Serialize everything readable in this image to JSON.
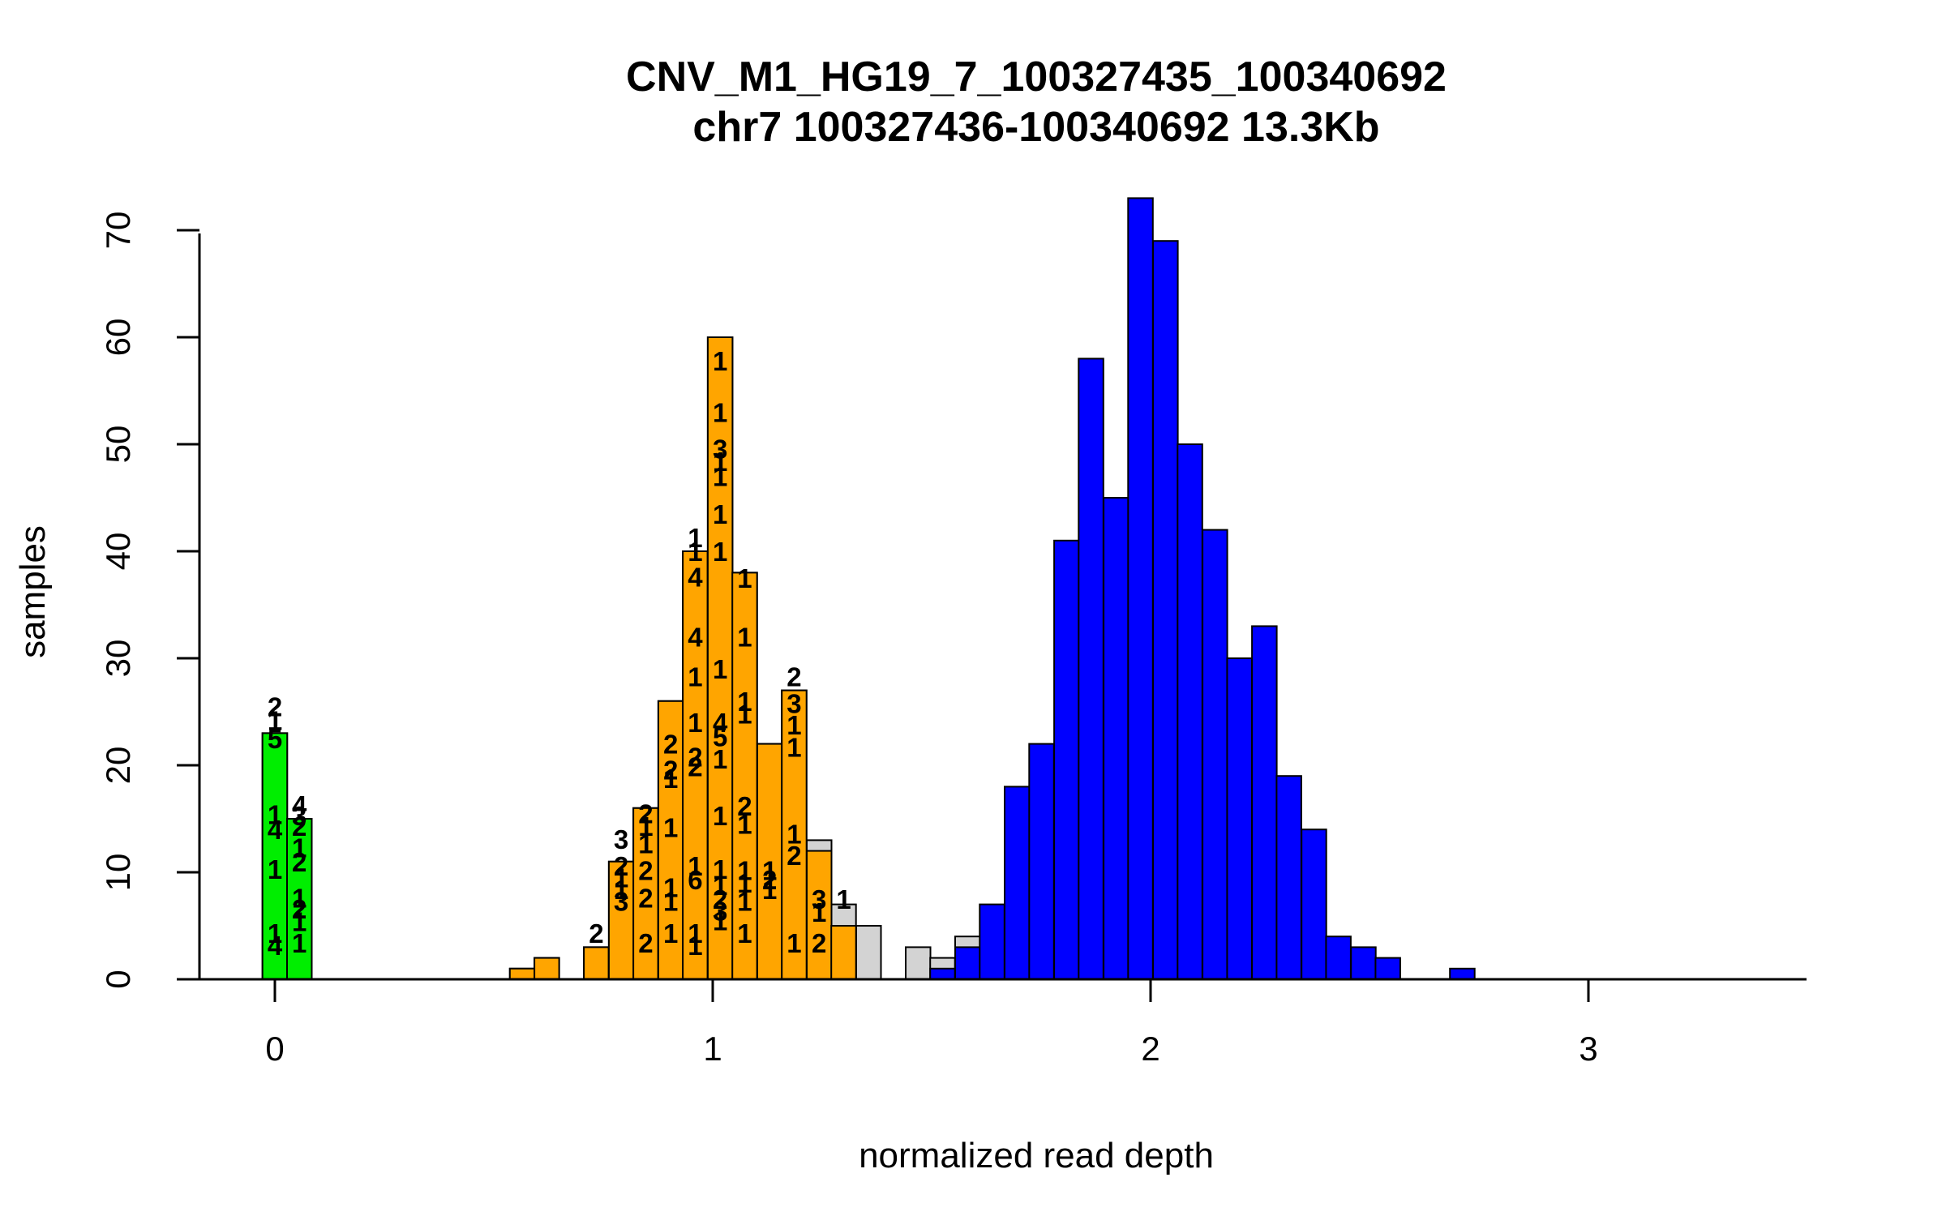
{
  "chart_data": {
    "type": "bar",
    "title": "CNV_M1_HG19_7_100327435_100340692",
    "subtitle": "chr7 100327436-100340692 13.3Kb",
    "xlabel": "normalized read depth",
    "ylabel": "samples",
    "xlim": [
      -0.17,
      3.5
    ],
    "ylim": [
      0,
      73
    ],
    "bin_width": 0.0565,
    "x_ticks": [
      0,
      1,
      2,
      3
    ],
    "y_ticks": [
      0,
      10,
      20,
      30,
      40,
      50,
      60,
      70
    ],
    "colors": {
      "total": "#d3d3d3",
      "zero_copy": "#00ee00",
      "one_copy": "#ffa500",
      "two_copy": "#0000ff"
    },
    "series": [
      {
        "color_key": "total",
        "bins": [
          {
            "x": 0.0,
            "value": 23
          },
          {
            "x": 0.056,
            "value": 15
          },
          {
            "x": 0.565,
            "value": 1
          },
          {
            "x": 0.621,
            "value": 2
          },
          {
            "x": 0.734,
            "value": 3
          },
          {
            "x": 0.791,
            "value": 11
          },
          {
            "x": 0.847,
            "value": 16
          },
          {
            "x": 0.904,
            "value": 26
          },
          {
            "x": 0.96,
            "value": 40
          },
          {
            "x": 1.017,
            "value": 60
          },
          {
            "x": 1.073,
            "value": 38
          },
          {
            "x": 1.13,
            "value": 22
          },
          {
            "x": 1.186,
            "value": 27
          },
          {
            "x": 1.243,
            "value": 13
          },
          {
            "x": 1.299,
            "value": 7
          },
          {
            "x": 1.356,
            "value": 5
          },
          {
            "x": 1.469,
            "value": 3
          },
          {
            "x": 1.525,
            "value": 2
          },
          {
            "x": 1.582,
            "value": 4
          }
        ]
      },
      {
        "color_key": "zero_copy",
        "bins": [
          {
            "x": 0.0,
            "value": 23
          },
          {
            "x": 0.056,
            "value": 15
          }
        ]
      },
      {
        "color_key": "one_copy",
        "bins": [
          {
            "x": 0.565,
            "value": 1
          },
          {
            "x": 0.621,
            "value": 2
          },
          {
            "x": 0.734,
            "value": 3
          },
          {
            "x": 0.791,
            "value": 11
          },
          {
            "x": 0.847,
            "value": 16
          },
          {
            "x": 0.904,
            "value": 26
          },
          {
            "x": 0.96,
            "value": 40
          },
          {
            "x": 1.017,
            "value": 60
          },
          {
            "x": 1.073,
            "value": 38
          },
          {
            "x": 1.13,
            "value": 22
          },
          {
            "x": 1.186,
            "value": 27
          },
          {
            "x": 1.243,
            "value": 12
          },
          {
            "x": 1.299,
            "value": 5
          }
        ]
      },
      {
        "color_key": "two_copy",
        "bins": [
          {
            "x": 1.525,
            "value": 1
          },
          {
            "x": 1.582,
            "value": 3
          },
          {
            "x": 1.638,
            "value": 7
          },
          {
            "x": 1.695,
            "value": 18
          },
          {
            "x": 1.751,
            "value": 22
          },
          {
            "x": 1.808,
            "value": 41
          },
          {
            "x": 1.864,
            "value": 58
          },
          {
            "x": 1.921,
            "value": 45
          },
          {
            "x": 1.977,
            "value": 73
          },
          {
            "x": 2.034,
            "value": 69
          },
          {
            "x": 2.09,
            "value": 50
          },
          {
            "x": 2.147,
            "value": 42
          },
          {
            "x": 2.203,
            "value": 30
          },
          {
            "x": 2.26,
            "value": 33
          },
          {
            "x": 2.316,
            "value": 19
          },
          {
            "x": 2.373,
            "value": 14
          },
          {
            "x": 2.429,
            "value": 4
          },
          {
            "x": 2.486,
            "value": 3
          },
          {
            "x": 2.542,
            "value": 2
          },
          {
            "x": 2.712,
            "value": 1
          }
        ]
      }
    ],
    "bar_labels": [
      {
        "x": 0.0,
        "y": 25.5,
        "text": "2"
      },
      {
        "x": 0.0,
        "y": 24.2,
        "text": "1"
      },
      {
        "x": 0.0,
        "y": 22.5,
        "text": "5"
      },
      {
        "x": 0.0,
        "y": 15.4,
        "text": "1"
      },
      {
        "x": 0.0,
        "y": 14.0,
        "text": "4"
      },
      {
        "x": 0.0,
        "y": 10.3,
        "text": "1"
      },
      {
        "x": 0.0,
        "y": 4.3,
        "text": "1"
      },
      {
        "x": 0.0,
        "y": 3.2,
        "text": "4"
      },
      {
        "x": 0.056,
        "y": 16.3,
        "text": "4"
      },
      {
        "x": 0.056,
        "y": 15.3,
        "text": "3"
      },
      {
        "x": 0.056,
        "y": 14.3,
        "text": "2"
      },
      {
        "x": 0.056,
        "y": 12.3,
        "text": "1"
      },
      {
        "x": 0.056,
        "y": 11.0,
        "text": "2"
      },
      {
        "x": 0.056,
        "y": 7.6,
        "text": "1"
      },
      {
        "x": 0.056,
        "y": 6.6,
        "text": "2"
      },
      {
        "x": 0.056,
        "y": 5.4,
        "text": "1"
      },
      {
        "x": 0.056,
        "y": 3.4,
        "text": "1"
      },
      {
        "x": 0.734,
        "y": 4.3,
        "text": "2"
      },
      {
        "x": 0.791,
        "y": 13.1,
        "text": "3"
      },
      {
        "x": 0.791,
        "y": 10.6,
        "text": "2"
      },
      {
        "x": 0.791,
        "y": 9.5,
        "text": "1"
      },
      {
        "x": 0.791,
        "y": 8.4,
        "text": "1"
      },
      {
        "x": 0.791,
        "y": 7.3,
        "text": "3"
      },
      {
        "x": 0.847,
        "y": 15.5,
        "text": "2"
      },
      {
        "x": 0.847,
        "y": 14.3,
        "text": "1"
      },
      {
        "x": 0.847,
        "y": 12.7,
        "text": "1"
      },
      {
        "x": 0.847,
        "y": 10.2,
        "text": "2"
      },
      {
        "x": 0.847,
        "y": 7.6,
        "text": "2"
      },
      {
        "x": 0.847,
        "y": 3.4,
        "text": "2"
      },
      {
        "x": 0.904,
        "y": 22.0,
        "text": "2"
      },
      {
        "x": 0.904,
        "y": 19.6,
        "text": "2"
      },
      {
        "x": 0.904,
        "y": 18.8,
        "text": "1"
      },
      {
        "x": 0.904,
        "y": 14.2,
        "text": "1"
      },
      {
        "x": 0.904,
        "y": 8.6,
        "text": "1"
      },
      {
        "x": 0.904,
        "y": 7.3,
        "text": "1"
      },
      {
        "x": 0.904,
        "y": 4.3,
        "text": "1"
      },
      {
        "x": 0.96,
        "y": 41.3,
        "text": "1"
      },
      {
        "x": 0.96,
        "y": 40.0,
        "text": "1"
      },
      {
        "x": 0.96,
        "y": 37.6,
        "text": "4"
      },
      {
        "x": 0.96,
        "y": 32.0,
        "text": "4"
      },
      {
        "x": 0.96,
        "y": 28.3,
        "text": "1"
      },
      {
        "x": 0.96,
        "y": 24.0,
        "text": "1"
      },
      {
        "x": 0.96,
        "y": 20.8,
        "text": "2"
      },
      {
        "x": 0.96,
        "y": 19.9,
        "text": "2"
      },
      {
        "x": 0.96,
        "y": 10.6,
        "text": "1"
      },
      {
        "x": 0.96,
        "y": 9.3,
        "text": "6"
      },
      {
        "x": 0.96,
        "y": 4.3,
        "text": "1"
      },
      {
        "x": 0.96,
        "y": 3.2,
        "text": "1"
      },
      {
        "x": 1.017,
        "y": 57.8,
        "text": "1"
      },
      {
        "x": 1.017,
        "y": 53.0,
        "text": "1"
      },
      {
        "x": 1.017,
        "y": 49.6,
        "text": "3"
      },
      {
        "x": 1.017,
        "y": 48.4,
        "text": "1"
      },
      {
        "x": 1.017,
        "y": 47.0,
        "text": "1"
      },
      {
        "x": 1.017,
        "y": 43.5,
        "text": "1"
      },
      {
        "x": 1.017,
        "y": 40.0,
        "text": "1"
      },
      {
        "x": 1.017,
        "y": 29.0,
        "text": "1"
      },
      {
        "x": 1.017,
        "y": 24.0,
        "text": "4"
      },
      {
        "x": 1.017,
        "y": 22.7,
        "text": "5"
      },
      {
        "x": 1.017,
        "y": 20.6,
        "text": "1"
      },
      {
        "x": 1.017,
        "y": 15.3,
        "text": "1"
      },
      {
        "x": 1.017,
        "y": 10.3,
        "text": "1"
      },
      {
        "x": 1.017,
        "y": 8.8,
        "text": "1"
      },
      {
        "x": 1.017,
        "y": 7.5,
        "text": "2"
      },
      {
        "x": 1.017,
        "y": 6.4,
        "text": "3"
      },
      {
        "x": 1.017,
        "y": 5.5,
        "text": "1"
      },
      {
        "x": 1.073,
        "y": 37.5,
        "text": "1"
      },
      {
        "x": 1.073,
        "y": 32.0,
        "text": "1"
      },
      {
        "x": 1.073,
        "y": 26.0,
        "text": "1"
      },
      {
        "x": 1.073,
        "y": 24.8,
        "text": "1"
      },
      {
        "x": 1.073,
        "y": 16.2,
        "text": "2"
      },
      {
        "x": 1.073,
        "y": 14.5,
        "text": "1"
      },
      {
        "x": 1.073,
        "y": 10.2,
        "text": "1"
      },
      {
        "x": 1.073,
        "y": 9.0,
        "text": "1"
      },
      {
        "x": 1.073,
        "y": 7.3,
        "text": "1"
      },
      {
        "x": 1.073,
        "y": 4.3,
        "text": "1"
      },
      {
        "x": 1.13,
        "y": 10.2,
        "text": "1"
      },
      {
        "x": 1.13,
        "y": 9.3,
        "text": "2"
      },
      {
        "x": 1.13,
        "y": 8.4,
        "text": "1"
      },
      {
        "x": 1.186,
        "y": 28.3,
        "text": "2"
      },
      {
        "x": 1.186,
        "y": 25.8,
        "text": "3"
      },
      {
        "x": 1.186,
        "y": 23.8,
        "text": "1"
      },
      {
        "x": 1.186,
        "y": 21.7,
        "text": "1"
      },
      {
        "x": 1.186,
        "y": 13.6,
        "text": "1"
      },
      {
        "x": 1.186,
        "y": 11.6,
        "text": "2"
      },
      {
        "x": 1.186,
        "y": 3.4,
        "text": "1"
      },
      {
        "x": 1.243,
        "y": 7.5,
        "text": "3"
      },
      {
        "x": 1.243,
        "y": 6.3,
        "text": "1"
      },
      {
        "x": 1.243,
        "y": 3.4,
        "text": "2"
      },
      {
        "x": 1.299,
        "y": 7.5,
        "text": "1"
      }
    ]
  }
}
